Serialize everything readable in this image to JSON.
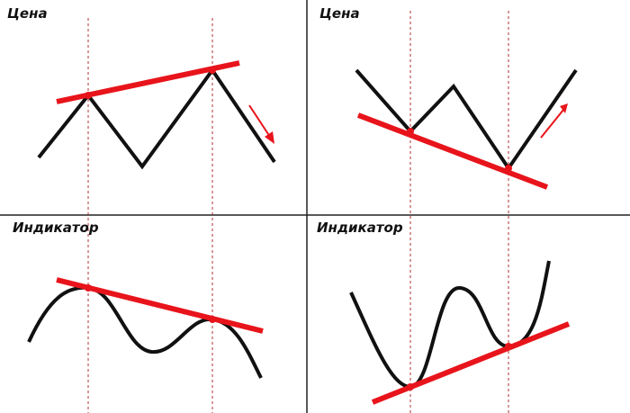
{
  "panels": {
    "top_left": {
      "title": "Цена"
    },
    "top_right": {
      "title": "Цена"
    },
    "bottom_left": {
      "title": "Индикатор"
    },
    "bottom_right": {
      "title": "Индикатор"
    }
  },
  "colors": {
    "line": "#111111",
    "trend": "#e8141b",
    "divider": "#222222",
    "guide": "#b03030",
    "background": "#ffffff"
  }
}
